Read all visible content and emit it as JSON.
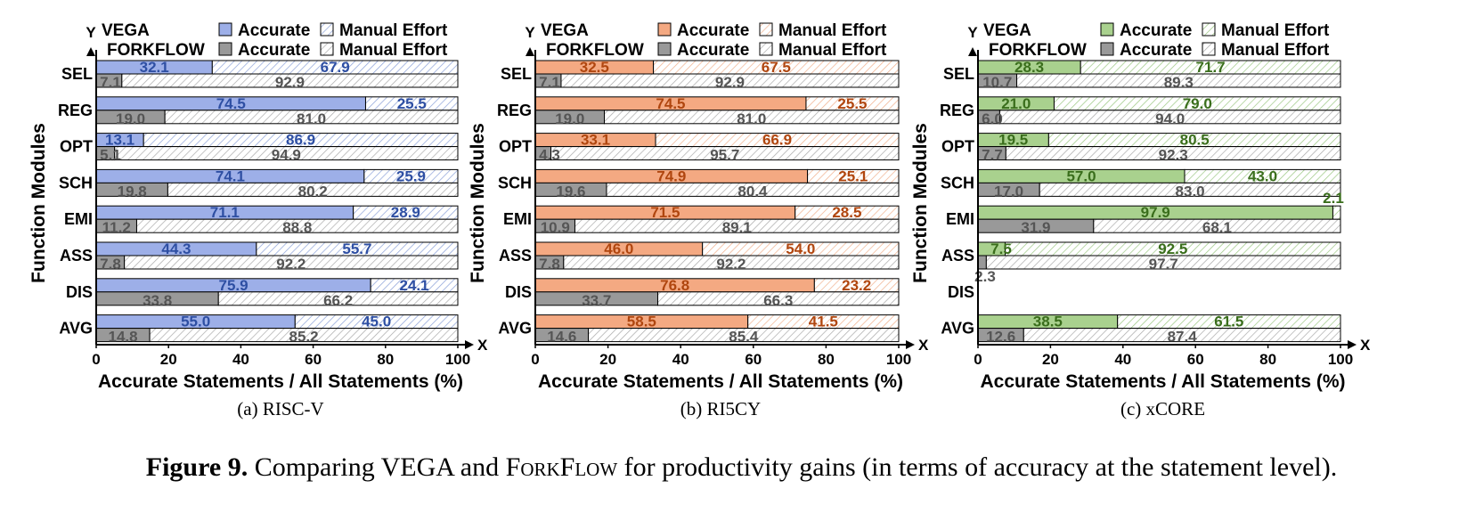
{
  "figure": {
    "caption_label": "Figure 9.",
    "caption_text_1": " Comparing VEGA and ",
    "caption_smallcaps": "ForkFlow",
    "caption_text_2": " for productivity gains (in terms of accuracy at the statement level)."
  },
  "chart_data": [
    {
      "type": "bar",
      "orientation": "horizontal-stacked",
      "subcaption": "(a)  RISC-V",
      "xlabel": "Accurate Statements / All Statements (%)",
      "ylabel": "Function Modules",
      "x_axis_letter": "X",
      "y_axis_letter": "Y",
      "xlim": [
        0,
        100
      ],
      "xticks": [
        "0",
        "20",
        "40",
        "60",
        "80",
        "100"
      ],
      "categories": [
        "SEL",
        "REG",
        "OPT",
        "SCH",
        "EMI",
        "ASS",
        "DIS",
        "AVG"
      ],
      "legend": {
        "row1_tool": "VEGA",
        "row2_tool": "FORKFLOW",
        "accurate": "Accurate",
        "manual": "Manual Effort"
      },
      "colors": {
        "vega_fill": "#9dafe8",
        "vega_text": "#2e4fa3",
        "vega_hatch": "#8aa0d8",
        "forkflow_fill": "#999999",
        "forkflow_text": "#555555",
        "forkflow_hatch": "#aaaaaa"
      },
      "series": [
        {
          "name": "VEGA Accurate",
          "values": [
            "32.1",
            "74.5",
            "13.1",
            "74.1",
            "71.1",
            "44.3",
            "75.9",
            "55.0"
          ]
        },
        {
          "name": "VEGA Manual Effort",
          "values": [
            "67.9",
            "25.5",
            "86.9",
            "25.9",
            "28.9",
            "55.7",
            "24.1",
            "45.0"
          ]
        },
        {
          "name": "FORKFLOW Accurate",
          "values": [
            "7.1",
            "19.0",
            "5.1",
            "19.8",
            "11.2",
            "7.8",
            "33.8",
            "14.8"
          ]
        },
        {
          "name": "FORKFLOW Manual Effort",
          "values": [
            "92.9",
            "81.0",
            "94.9",
            "80.2",
            "88.8",
            "92.2",
            "66.2",
            "85.2"
          ]
        }
      ]
    },
    {
      "type": "bar",
      "orientation": "horizontal-stacked",
      "subcaption": "(b)  RI5CY",
      "xlabel": "Accurate Statements / All Statements (%)",
      "ylabel": "Function Modules",
      "x_axis_letter": "X",
      "y_axis_letter": "Y",
      "xlim": [
        0,
        100
      ],
      "xticks": [
        "0",
        "20",
        "40",
        "60",
        "80",
        "100"
      ],
      "categories": [
        "SEL",
        "REG",
        "OPT",
        "SCH",
        "EMI",
        "ASS",
        "DIS",
        "AVG"
      ],
      "legend": {
        "row1_tool": "VEGA",
        "row2_tool": "FORKFLOW",
        "accurate": "Accurate",
        "manual": "Manual Effort"
      },
      "colors": {
        "vega_fill": "#f4a982",
        "vega_text": "#b0460f",
        "vega_hatch": "#f0b08c",
        "forkflow_fill": "#999999",
        "forkflow_text": "#555555",
        "forkflow_hatch": "#aaaaaa"
      },
      "series": [
        {
          "name": "VEGA Accurate",
          "values": [
            "32.5",
            "74.5",
            "33.1",
            "74.9",
            "71.5",
            "46.0",
            "76.8",
            "58.5"
          ]
        },
        {
          "name": "VEGA Manual Effort",
          "values": [
            "67.5",
            "25.5",
            "66.9",
            "25.1",
            "28.5",
            "54.0",
            "23.2",
            "41.5"
          ]
        },
        {
          "name": "FORKFLOW Accurate",
          "values": [
            "7.1",
            "19.0",
            "4.3",
            "19.6",
            "10.9",
            "7.8",
            "33.7",
            "14.6"
          ]
        },
        {
          "name": "FORKFLOW Manual Effort",
          "values": [
            "92.9",
            "81.0",
            "95.7",
            "80.4",
            "89.1",
            "92.2",
            "66.3",
            "85.4"
          ]
        }
      ]
    },
    {
      "type": "bar",
      "orientation": "horizontal-stacked",
      "subcaption": "(c)  xCORE",
      "xlabel": "Accurate Statements / All Statements (%)",
      "ylabel": "Function Modules",
      "x_axis_letter": "X",
      "y_axis_letter": "Y",
      "xlim": [
        0,
        100
      ],
      "xticks": [
        "0",
        "20",
        "40",
        "60",
        "80",
        "100"
      ],
      "categories": [
        "SEL",
        "REG",
        "OPT",
        "SCH",
        "EMI",
        "ASS",
        "DIS",
        "AVG"
      ],
      "legend": {
        "row1_tool": "VEGA",
        "row2_tool": "FORKFLOW",
        "accurate": "Accurate",
        "manual": "Manual Effort"
      },
      "colors": {
        "vega_fill": "#a9d18e",
        "vega_text": "#3a6e1c",
        "vega_hatch": "#9cc884",
        "forkflow_fill": "#999999",
        "forkflow_text": "#555555",
        "forkflow_hatch": "#aaaaaa"
      },
      "series": [
        {
          "name": "VEGA Accurate",
          "values": [
            "28.3",
            "21.0",
            "19.5",
            "57.0",
            "97.9",
            "7.5",
            null,
            "38.5"
          ]
        },
        {
          "name": "VEGA Manual Effort",
          "values": [
            "71.7",
            "79.0",
            "80.5",
            "43.0",
            "2.1",
            "92.5",
            null,
            "61.5"
          ]
        },
        {
          "name": "FORKFLOW Accurate",
          "values": [
            "10.7",
            "6.0",
            "7.7",
            "17.0",
            "31.9",
            "2.3",
            null,
            "12.6"
          ]
        },
        {
          "name": "FORKFLOW Manual Effort",
          "values": [
            "89.3",
            "94.0",
            "92.3",
            "83.0",
            "68.1",
            "97.7",
            null,
            "87.4"
          ]
        }
      ]
    }
  ]
}
